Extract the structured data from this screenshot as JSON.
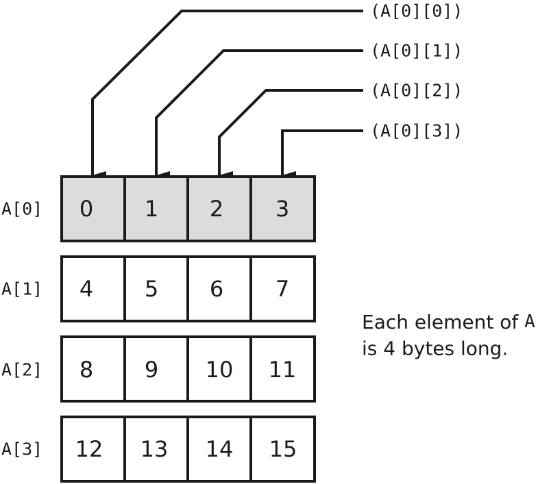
{
  "colors": {
    "line": "#1a1a1a",
    "highlight_fill": "#dcdcdc",
    "plain_fill": "#ffffff"
  },
  "pointer_labels": [
    "(A[0][0])",
    "(A[0][1])",
    "(A[0][2])",
    "(A[0][3])"
  ],
  "rows": [
    {
      "label": "A[0]",
      "values": [
        "0",
        "1",
        "2",
        "3"
      ],
      "highlighted": true
    },
    {
      "label": "A[1]",
      "values": [
        "4",
        "5",
        "6",
        "7"
      ],
      "highlighted": false
    },
    {
      "label": "A[2]",
      "values": [
        "8",
        "9",
        "10",
        "11"
      ],
      "highlighted": false
    },
    {
      "label": "A[3]",
      "values": [
        "12",
        "13",
        "14",
        "15"
      ],
      "highlighted": false
    }
  ],
  "note": {
    "line1_prefix": "Each element of ",
    "line1_code": "A",
    "line2": "is 4 bytes long."
  }
}
